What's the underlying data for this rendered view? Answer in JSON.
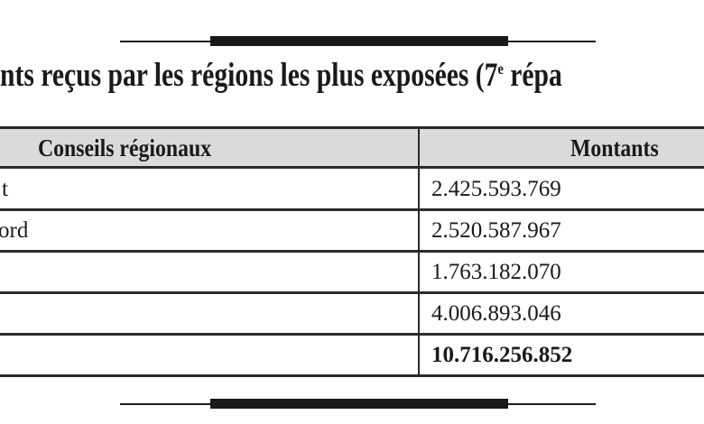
{
  "title": {
    "before_sup": "nts reçus par les régions les plus exposées (7",
    "sup": "e",
    "after_sup": " répa"
  },
  "table": {
    "headers": [
      "Conseils régionaux",
      "Montants"
    ],
    "rows": [
      {
        "region": "t",
        "amount": "2.425.593.769"
      },
      {
        "region": "ord",
        "amount": "2.520.587.967"
      },
      {
        "region": "",
        "amount": "1.763.182.070"
      },
      {
        "region": "",
        "amount": "4.006.893.046"
      },
      {
        "region": "",
        "amount": "10.716.256.852",
        "bold": true
      }
    ]
  }
}
